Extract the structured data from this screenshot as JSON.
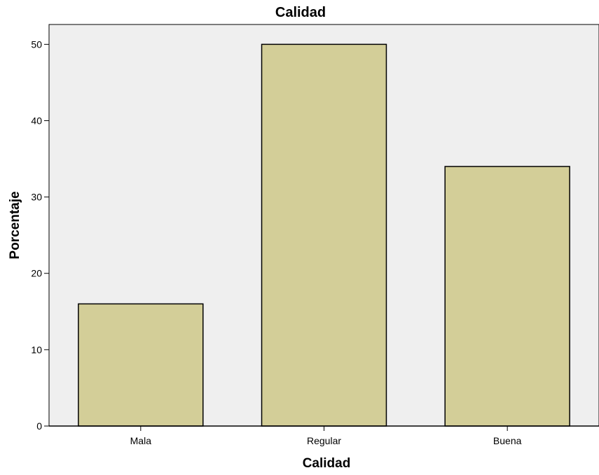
{
  "chart_data": {
    "type": "bar",
    "title": "Calidad",
    "xlabel": "Calidad",
    "ylabel": "Porcentaje",
    "categories": [
      "Mala",
      "Regular",
      "Buena"
    ],
    "values": [
      16,
      50,
      34
    ],
    "ylim": [
      0,
      52.6
    ],
    "yticks": [
      0,
      10,
      20,
      30,
      40,
      50
    ],
    "grid": false,
    "colors": {
      "plot_background": "#efefef",
      "bar_fill": "#d3ce98",
      "bar_stroke": "#000000"
    }
  }
}
